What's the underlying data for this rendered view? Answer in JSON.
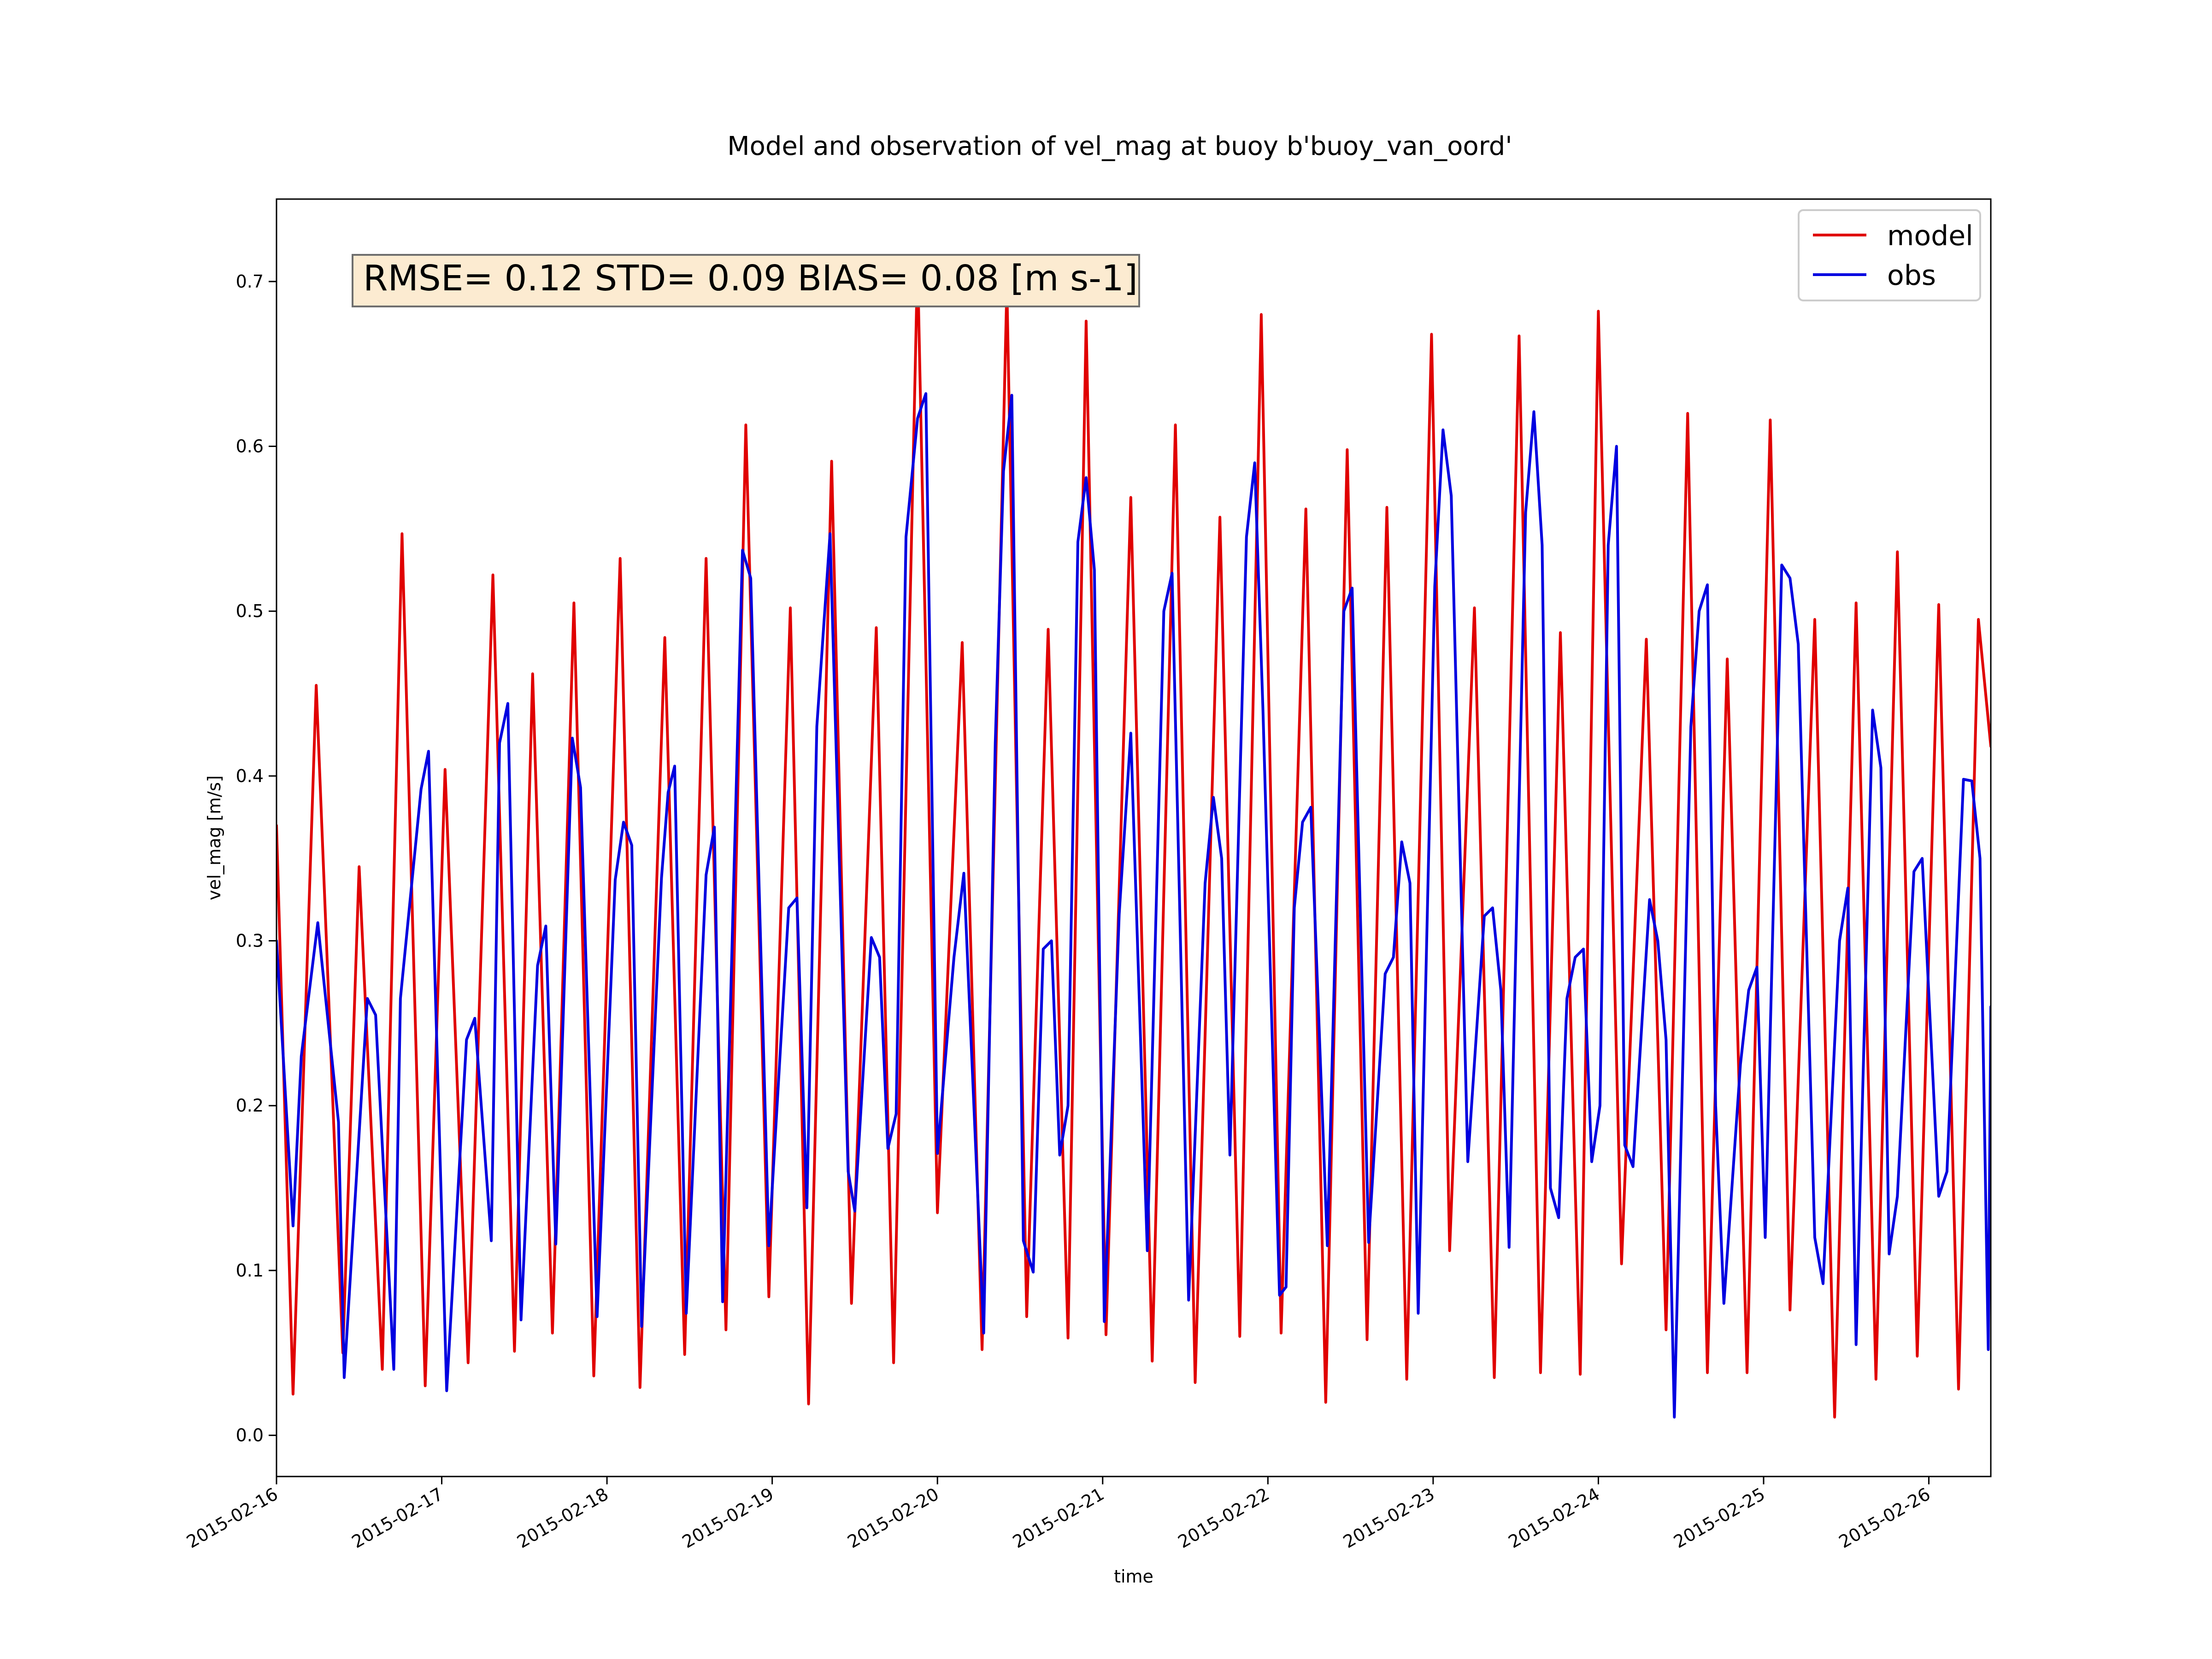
{
  "chart_data": {
    "type": "line",
    "title": "Model and observation of vel_mag at buoy b'buoy_van_oord'",
    "xlabel": "time",
    "ylabel": "vel_mag [m/s]",
    "stats_text": "RMSE= 0.12 STD= 0.09 BIAS= 0.08 [m s-1]",
    "xlim": [
      "2015-02-16T00:00",
      "2015-02-26T09:00"
    ],
    "ylim": [
      -0.025,
      0.75
    ],
    "x_tick_labels": [
      "2015-02-16",
      "2015-02-17",
      "2015-02-18",
      "2015-02-19",
      "2015-02-20",
      "2015-02-21",
      "2015-02-22",
      "2015-02-23",
      "2015-02-24",
      "2015-02-25",
      "2015-02-26"
    ],
    "y_ticks": [
      0.0,
      0.1,
      0.2,
      0.3,
      0.4,
      0.5,
      0.6,
      0.7
    ],
    "y_tick_labels": [
      "0.0",
      "0.1",
      "0.2",
      "0.3",
      "0.4",
      "0.5",
      "0.6",
      "0.7"
    ],
    "grid": false,
    "legend_position": "top-right",
    "series": [
      {
        "name": "model",
        "color": "#e00000",
        "points": [
          [
            "2015-02-16T00:00",
            0.37
          ],
          [
            "2015-02-16T02:24",
            0.025
          ],
          [
            "2015-02-16T05:46",
            0.455
          ],
          [
            "2015-02-16T09:38",
            0.05
          ],
          [
            "2015-02-16T12:00",
            0.345
          ],
          [
            "2015-02-16T15:22",
            0.04
          ],
          [
            "2015-02-16T18:14",
            0.547
          ],
          [
            "2015-02-16T21:36",
            0.03
          ],
          [
            "2015-02-17T00:29",
            0.404
          ],
          [
            "2015-02-17T03:50",
            0.044
          ],
          [
            "2015-02-17T07:26",
            0.522
          ],
          [
            "2015-02-17T10:34",
            0.051
          ],
          [
            "2015-02-17T13:12",
            0.462
          ],
          [
            "2015-02-17T16:05",
            0.062
          ],
          [
            "2015-02-17T19:12",
            0.505
          ],
          [
            "2015-02-17T22:05",
            0.036
          ],
          [
            "2015-02-18T01:55",
            0.532
          ],
          [
            "2015-02-18T04:48",
            0.029
          ],
          [
            "2015-02-18T08:24",
            0.484
          ],
          [
            "2015-02-18T11:17",
            0.049
          ],
          [
            "2015-02-18T14:24",
            0.532
          ],
          [
            "2015-02-18T17:17",
            0.064
          ],
          [
            "2015-02-18T20:10",
            0.613
          ],
          [
            "2015-02-18T23:31",
            0.084
          ],
          [
            "2015-02-19T02:38",
            0.502
          ],
          [
            "2015-02-19T05:17",
            0.019
          ],
          [
            "2015-02-19T08:38",
            0.591
          ],
          [
            "2015-02-19T11:31",
            0.08
          ],
          [
            "2015-02-19T15:07",
            0.49
          ],
          [
            "2015-02-19T17:38",
            0.044
          ],
          [
            "2015-02-19T21:07",
            0.713
          ],
          [
            "2015-02-20T00:00",
            0.135
          ],
          [
            "2015-02-20T03:36",
            0.481
          ],
          [
            "2015-02-20T06:29",
            0.052
          ],
          [
            "2015-02-20T10:05",
            0.697
          ],
          [
            "2015-02-20T12:58",
            0.072
          ],
          [
            "2015-02-20T16:05",
            0.489
          ],
          [
            "2015-02-20T18:58",
            0.059
          ],
          [
            "2015-02-20T21:36",
            0.676
          ],
          [
            "2015-02-21T00:29",
            0.061
          ],
          [
            "2015-02-21T04:05",
            0.569
          ],
          [
            "2015-02-21T07:12",
            0.045
          ],
          [
            "2015-02-21T10:34",
            0.613
          ],
          [
            "2015-02-21T13:26",
            0.032
          ],
          [
            "2015-02-21T17:02",
            0.557
          ],
          [
            "2015-02-21T19:55",
            0.06
          ],
          [
            "2015-02-21T23:02",
            0.68
          ],
          [
            "2015-02-22T01:55",
            0.062
          ],
          [
            "2015-02-22T05:31",
            0.562
          ],
          [
            "2015-02-22T08:24",
            0.02
          ],
          [
            "2015-02-22T11:31",
            0.598
          ],
          [
            "2015-02-22T14:24",
            0.058
          ],
          [
            "2015-02-22T17:17",
            0.563
          ],
          [
            "2015-02-22T20:10",
            0.034
          ],
          [
            "2015-02-22T23:46",
            0.668
          ],
          [
            "2015-02-23T02:24",
            0.112
          ],
          [
            "2015-02-23T06:00",
            0.502
          ],
          [
            "2015-02-23T08:53",
            0.035
          ],
          [
            "2015-02-23T12:29",
            0.667
          ],
          [
            "2015-02-23T15:36",
            0.038
          ],
          [
            "2015-02-23T18:29",
            0.487
          ],
          [
            "2015-02-23T21:22",
            0.037
          ],
          [
            "2015-02-24T00:00",
            0.682
          ],
          [
            "2015-02-24T03:22",
            0.104
          ],
          [
            "2015-02-24T06:58",
            0.483
          ],
          [
            "2015-02-24T09:50",
            0.064
          ],
          [
            "2015-02-24T12:58",
            0.62
          ],
          [
            "2015-02-24T15:50",
            0.038
          ],
          [
            "2015-02-24T18:43",
            0.471
          ],
          [
            "2015-02-24T21:36",
            0.038
          ],
          [
            "2015-02-25T00:58",
            0.616
          ],
          [
            "2015-02-25T03:50",
            0.076
          ],
          [
            "2015-02-25T07:26",
            0.495
          ],
          [
            "2015-02-25T10:19",
            0.011
          ],
          [
            "2015-02-25T13:26",
            0.505
          ],
          [
            "2015-02-25T16:19",
            0.034
          ],
          [
            "2015-02-25T19:26",
            0.536
          ],
          [
            "2015-02-25T22:19",
            0.048
          ],
          [
            "2015-02-26T01:26",
            0.504
          ],
          [
            "2015-02-26T04:19",
            0.028
          ],
          [
            "2015-02-26T07:12",
            0.495
          ],
          [
            "2015-02-26T09:00",
            0.418
          ]
        ]
      },
      {
        "name": "obs",
        "color": "#0000e0",
        "points": [
          [
            "2015-02-16T00:00",
            0.3
          ],
          [
            "2015-02-16T02:24",
            0.127
          ],
          [
            "2015-02-16T03:36",
            0.23
          ],
          [
            "2015-02-16T06:00",
            0.311
          ],
          [
            "2015-02-16T09:00",
            0.19
          ],
          [
            "2015-02-16T09:50",
            0.035
          ],
          [
            "2015-02-16T13:12",
            0.265
          ],
          [
            "2015-02-16T14:24",
            0.255
          ],
          [
            "2015-02-16T17:02",
            0.04
          ],
          [
            "2015-02-16T18:00",
            0.265
          ],
          [
            "2015-02-16T21:00",
            0.392
          ],
          [
            "2015-02-16T22:05",
            0.415
          ],
          [
            "2015-02-17T00:43",
            0.027
          ],
          [
            "2015-02-17T03:36",
            0.24
          ],
          [
            "2015-02-17T04:48",
            0.253
          ],
          [
            "2015-02-17T07:12",
            0.118
          ],
          [
            "2015-02-17T08:24",
            0.42
          ],
          [
            "2015-02-17T09:36",
            0.444
          ],
          [
            "2015-02-17T11:31",
            0.07
          ],
          [
            "2015-02-17T13:55",
            0.285
          ],
          [
            "2015-02-17T15:07",
            0.309
          ],
          [
            "2015-02-17T16:34",
            0.116
          ],
          [
            "2015-02-17T18:58",
            0.423
          ],
          [
            "2015-02-17T20:10",
            0.393
          ],
          [
            "2015-02-17T22:34",
            0.072
          ],
          [
            "2015-02-18T01:12",
            0.337
          ],
          [
            "2015-02-18T02:24",
            0.372
          ],
          [
            "2015-02-18T03:36",
            0.358
          ],
          [
            "2015-02-18T05:02",
            0.066
          ],
          [
            "2015-02-18T07:55",
            0.338
          ],
          [
            "2015-02-18T08:53",
            0.39
          ],
          [
            "2015-02-18T09:50",
            0.406
          ],
          [
            "2015-02-18T11:31",
            0.074
          ],
          [
            "2015-02-18T14:24",
            0.34
          ],
          [
            "2015-02-18T15:36",
            0.369
          ],
          [
            "2015-02-18T16:48",
            0.081
          ],
          [
            "2015-02-18T19:41",
            0.537
          ],
          [
            "2015-02-18T20:53",
            0.52
          ],
          [
            "2015-02-18T23:31",
            0.115
          ],
          [
            "2015-02-19T02:24",
            0.32
          ],
          [
            "2015-02-19T03:36",
            0.326
          ],
          [
            "2015-02-19T05:02",
            0.138
          ],
          [
            "2015-02-19T06:29",
            0.43
          ],
          [
            "2015-02-19T08:24",
            0.547
          ],
          [
            "2015-02-19T11:02",
            0.16
          ],
          [
            "2015-02-19T12:00",
            0.136
          ],
          [
            "2015-02-19T14:24",
            0.302
          ],
          [
            "2015-02-19T15:36",
            0.29
          ],
          [
            "2015-02-19T16:48",
            0.174
          ],
          [
            "2015-02-19T18:00",
            0.195
          ],
          [
            "2015-02-19T19:26",
            0.545
          ],
          [
            "2015-02-19T21:07",
            0.617
          ],
          [
            "2015-02-19T22:19",
            0.632
          ],
          [
            "2015-02-20T00:00",
            0.171
          ],
          [
            "2015-02-20T02:24",
            0.29
          ],
          [
            "2015-02-20T03:50",
            0.341
          ],
          [
            "2015-02-20T06:43",
            0.062
          ],
          [
            "2015-02-20T08:24",
            0.42
          ],
          [
            "2015-02-20T09:36",
            0.585
          ],
          [
            "2015-02-20T10:48",
            0.631
          ],
          [
            "2015-02-20T12:29",
            0.118
          ],
          [
            "2015-02-20T13:55",
            0.099
          ],
          [
            "2015-02-20T15:22",
            0.295
          ],
          [
            "2015-02-20T16:34",
            0.3
          ],
          [
            "2015-02-20T17:46",
            0.17
          ],
          [
            "2015-02-20T18:58",
            0.2
          ],
          [
            "2015-02-20T20:24",
            0.542
          ],
          [
            "2015-02-20T21:36",
            0.581
          ],
          [
            "2015-02-20T22:48",
            0.525
          ],
          [
            "2015-02-21T00:14",
            0.069
          ],
          [
            "2015-02-21T02:24",
            0.316
          ],
          [
            "2015-02-21T04:05",
            0.426
          ],
          [
            "2015-02-21T06:29",
            0.112
          ],
          [
            "2015-02-21T08:53",
            0.5
          ],
          [
            "2015-02-21T10:05",
            0.523
          ],
          [
            "2015-02-21T12:29",
            0.082
          ],
          [
            "2015-02-21T14:53",
            0.335
          ],
          [
            "2015-02-21T16:05",
            0.387
          ],
          [
            "2015-02-21T17:17",
            0.35
          ],
          [
            "2015-02-21T18:29",
            0.17
          ],
          [
            "2015-02-21T20:53",
            0.545
          ],
          [
            "2015-02-21T22:05",
            0.59
          ],
          [
            "2015-02-21T23:17",
            0.44
          ],
          [
            "2015-02-22T01:41",
            0.085
          ],
          [
            "2015-02-22T02:38",
            0.09
          ],
          [
            "2015-02-22T03:50",
            0.32
          ],
          [
            "2015-02-22T05:02",
            0.372
          ],
          [
            "2015-02-22T06:14",
            0.381
          ],
          [
            "2015-02-22T08:38",
            0.115
          ],
          [
            "2015-02-22T11:02",
            0.5
          ],
          [
            "2015-02-22T12:14",
            0.514
          ],
          [
            "2015-02-22T14:38",
            0.117
          ],
          [
            "2015-02-22T17:02",
            0.28
          ],
          [
            "2015-02-22T18:14",
            0.29
          ],
          [
            "2015-02-22T19:26",
            0.36
          ],
          [
            "2015-02-22T20:38",
            0.335
          ],
          [
            "2015-02-22T21:50",
            0.074
          ],
          [
            "2015-02-23T00:14",
            0.515
          ],
          [
            "2015-02-23T01:26",
            0.61
          ],
          [
            "2015-02-23T02:38",
            0.57
          ],
          [
            "2015-02-23T05:02",
            0.166
          ],
          [
            "2015-02-23T07:26",
            0.315
          ],
          [
            "2015-02-23T08:38",
            0.32
          ],
          [
            "2015-02-23T09:50",
            0.27
          ],
          [
            "2015-02-23T11:02",
            0.114
          ],
          [
            "2015-02-23T13:26",
            0.56
          ],
          [
            "2015-02-23T14:38",
            0.621
          ],
          [
            "2015-02-23T15:50",
            0.54
          ],
          [
            "2015-02-23T17:02",
            0.15
          ],
          [
            "2015-02-23T18:14",
            0.132
          ],
          [
            "2015-02-23T19:26",
            0.265
          ],
          [
            "2015-02-23T20:38",
            0.29
          ],
          [
            "2015-02-23T21:50",
            0.295
          ],
          [
            "2015-02-23T23:02",
            0.166
          ],
          [
            "2015-02-24T00:14",
            0.2
          ],
          [
            "2015-02-24T01:26",
            0.54
          ],
          [
            "2015-02-24T02:38",
            0.6
          ],
          [
            "2015-02-24T03:50",
            0.176
          ],
          [
            "2015-02-24T05:02",
            0.163
          ],
          [
            "2015-02-24T07:26",
            0.325
          ],
          [
            "2015-02-24T08:38",
            0.3
          ],
          [
            "2015-02-24T09:50",
            0.24
          ],
          [
            "2015-02-24T11:02",
            0.011
          ],
          [
            "2015-02-24T13:26",
            0.43
          ],
          [
            "2015-02-24T14:38",
            0.5
          ],
          [
            "2015-02-24T15:50",
            0.516
          ],
          [
            "2015-02-24T17:02",
            0.2
          ],
          [
            "2015-02-24T18:14",
            0.08
          ],
          [
            "2015-02-24T20:38",
            0.225
          ],
          [
            "2015-02-24T21:50",
            0.27
          ],
          [
            "2015-02-24T23:02",
            0.284
          ],
          [
            "2015-02-25T00:14",
            0.12
          ],
          [
            "2015-02-25T02:38",
            0.528
          ],
          [
            "2015-02-25T03:50",
            0.52
          ],
          [
            "2015-02-25T05:02",
            0.48
          ],
          [
            "2015-02-25T07:26",
            0.12
          ],
          [
            "2015-02-25T08:38",
            0.092
          ],
          [
            "2015-02-25T11:02",
            0.3
          ],
          [
            "2015-02-25T12:14",
            0.332
          ],
          [
            "2015-02-25T13:26",
            0.055
          ],
          [
            "2015-02-25T15:50",
            0.44
          ],
          [
            "2015-02-25T17:02",
            0.405
          ],
          [
            "2015-02-25T18:14",
            0.11
          ],
          [
            "2015-02-25T19:26",
            0.145
          ],
          [
            "2015-02-25T21:50",
            0.342
          ],
          [
            "2015-02-25T23:02",
            0.35
          ],
          [
            "2015-02-26T01:26",
            0.145
          ],
          [
            "2015-02-26T02:38",
            0.16
          ],
          [
            "2015-02-26T05:02",
            0.398
          ],
          [
            "2015-02-26T06:14",
            0.397
          ],
          [
            "2015-02-26T07:26",
            0.35
          ],
          [
            "2015-02-26T08:38",
            0.052
          ],
          [
            "2015-02-26T09:00",
            0.26
          ]
        ]
      }
    ]
  }
}
